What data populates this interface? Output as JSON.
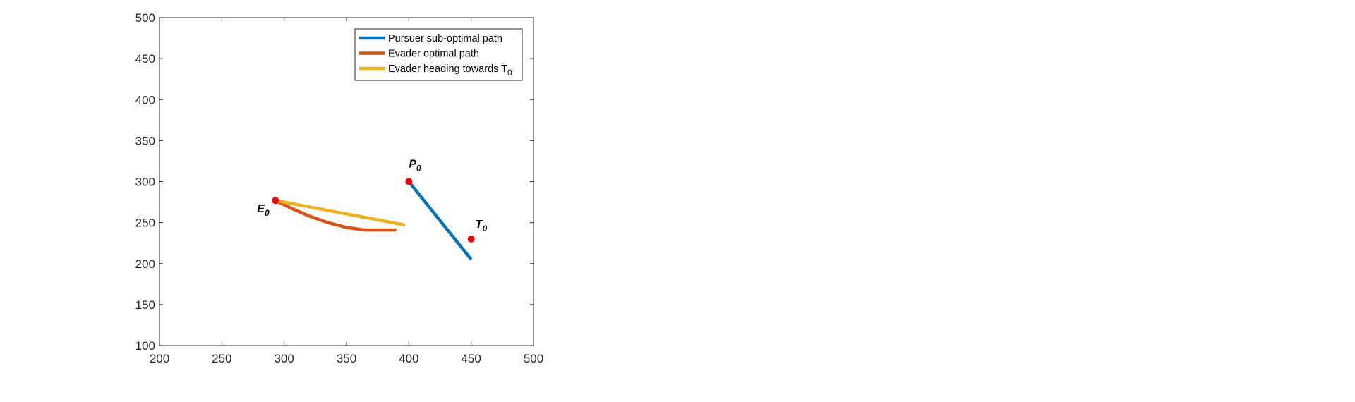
{
  "chart_data": {
    "type": "line",
    "title": "",
    "xlabel": "",
    "ylabel": "",
    "xlim": [
      200,
      500
    ],
    "ylim": [
      100,
      500
    ],
    "x_ticks": [
      200,
      250,
      300,
      350,
      400,
      450,
      500
    ],
    "y_ticks": [
      100,
      150,
      200,
      250,
      300,
      350,
      400,
      450,
      500
    ],
    "grid": false,
    "legend_position": "top-right",
    "series": [
      {
        "name": "Pursuer sub-optimal path",
        "color": "#0072BD",
        "points": [
          [
            400,
            300
          ],
          [
            450,
            205
          ]
        ]
      },
      {
        "name": "Evader optimal path",
        "color": "#D95319",
        "points": [
          [
            293,
            277
          ],
          [
            305,
            268
          ],
          [
            320,
            258
          ],
          [
            335,
            250
          ],
          [
            350,
            244
          ],
          [
            365,
            241
          ],
          [
            378,
            241
          ],
          [
            390,
            241
          ]
        ]
      },
      {
        "name": "Evader heading towards T",
        "name_subscript": "0",
        "color": "#EDB120",
        "points": [
          [
            293,
            277
          ],
          [
            397,
            247
          ]
        ]
      }
    ],
    "markers": [
      {
        "label": "E",
        "subscript": "0",
        "x": 293,
        "y": 277,
        "label_anchor": "lower-left",
        "color": "#FF0000"
      },
      {
        "label": "P",
        "subscript": "0",
        "x": 400,
        "y": 300,
        "label_anchor": "upper",
        "color": "#FF0000"
      },
      {
        "label": "T",
        "subscript": "0",
        "x": 450,
        "y": 230,
        "label_anchor": "upper-right",
        "color": "#FF0000"
      }
    ]
  }
}
